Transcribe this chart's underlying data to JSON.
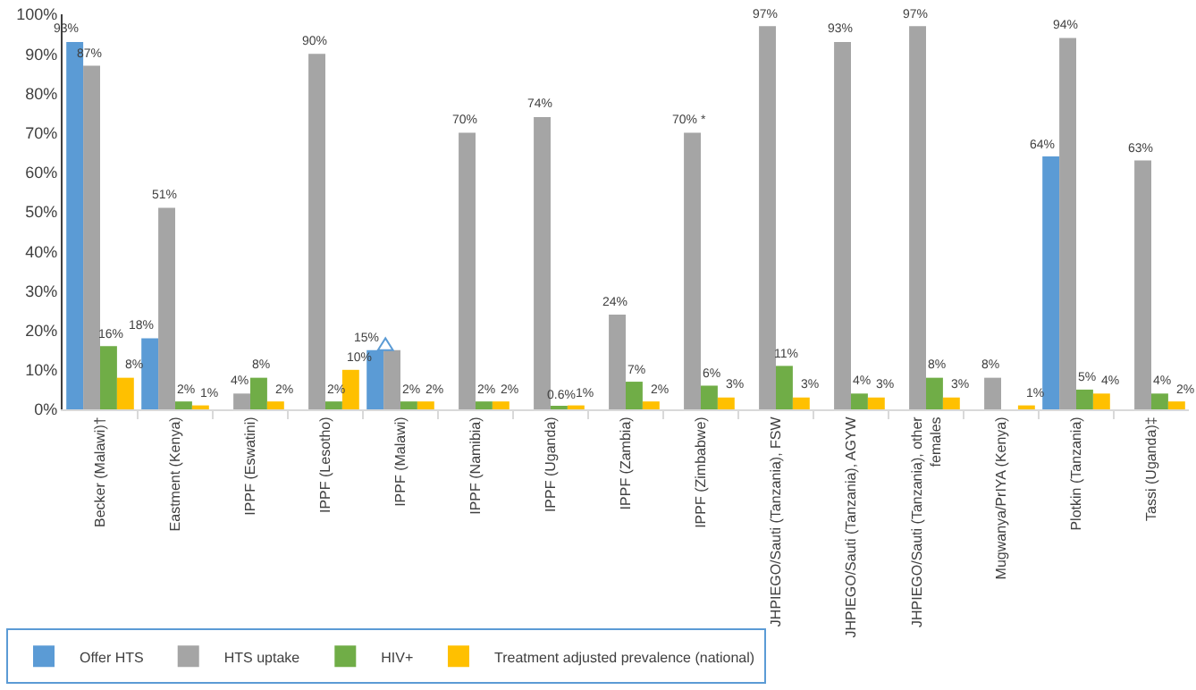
{
  "chart_data": {
    "type": "bar",
    "categories": [
      "Becker (Malawi)†",
      "Eastment (Kenya)",
      "IPPF (Eswatini)",
      "IPPF (Lesotho)",
      "IPPF (Malawi)",
      "IPPF (Namibia)",
      "IPPF (Uganda)",
      "IPPF (Zambia)",
      "IPPF (Zimbabwe)",
      "JHPIEGO/Sauti (Tanzania), FSW",
      "JHPIEGO/Sauti (Tanzania), AGYW",
      "JHPIEGO/Sauti (Tanzania), other females",
      "Mugwanya/PrIYA (Kenya)",
      "Plotkin (Tanzania)",
      "Tassi (Uganda)‡"
    ],
    "series": [
      {
        "name": "Offer HTS",
        "color": "#5b9bd5",
        "values": [
          93,
          18,
          null,
          null,
          15,
          null,
          null,
          null,
          null,
          null,
          null,
          null,
          null,
          64,
          null
        ],
        "value_labels": [
          "93%",
          "18%",
          null,
          null,
          "15%",
          null,
          null,
          null,
          null,
          null,
          null,
          null,
          null,
          "64%",
          null
        ]
      },
      {
        "name": "HTS uptake",
        "color": "#a5a5a5",
        "values": [
          87,
          51,
          4,
          90,
          15,
          70,
          74,
          24,
          70,
          97,
          93,
          97,
          8,
          94,
          63
        ],
        "value_labels": [
          "87%",
          "51%",
          "4%",
          "90%",
          null,
          "70%",
          "74%",
          "24%",
          "70% *",
          "97%",
          "93%",
          "97%",
          "8%",
          "94%",
          "63%"
        ]
      },
      {
        "name": "HIV+",
        "color": "#70ad47",
        "values": [
          16,
          2,
          8,
          2,
          2,
          2,
          0.6,
          7,
          6,
          11,
          4,
          8,
          null,
          5,
          4
        ],
        "value_labels": [
          "16%",
          "2%",
          "8%",
          "2%",
          "2%",
          "2%",
          "0.6%",
          "7%",
          "6%",
          "11%",
          "4%",
          "8%",
          null,
          "5%",
          "4%"
        ]
      },
      {
        "name": "Treatment adjusted prevalence (national)",
        "color": "#ffc000",
        "values": [
          8,
          1,
          2,
          10,
          2,
          2,
          1,
          2,
          3,
          3,
          3,
          3,
          1,
          4,
          2
        ],
        "value_labels": [
          "8%",
          "1%",
          "2%",
          "10%",
          "2%",
          "2%",
          "1%",
          "2%",
          "3%",
          "3%",
          "3%",
          "3%",
          "1%",
          "4%",
          "2%"
        ]
      }
    ],
    "ylim": [
      0,
      100
    ],
    "yticks": [
      {
        "value": 0,
        "label": "0%"
      },
      {
        "value": 10,
        "label": "10%"
      },
      {
        "value": 20,
        "label": "20%"
      },
      {
        "value": 30,
        "label": "30%"
      },
      {
        "value": 40,
        "label": "40%"
      },
      {
        "value": 50,
        "label": "50%"
      },
      {
        "value": 60,
        "label": "60%"
      },
      {
        "value": 70,
        "label": "70%"
      },
      {
        "value": 80,
        "label": "80%"
      },
      {
        "value": 90,
        "label": "90%"
      },
      {
        "value": 100,
        "label": "100%"
      }
    ],
    "legend": "bottom left"
  }
}
